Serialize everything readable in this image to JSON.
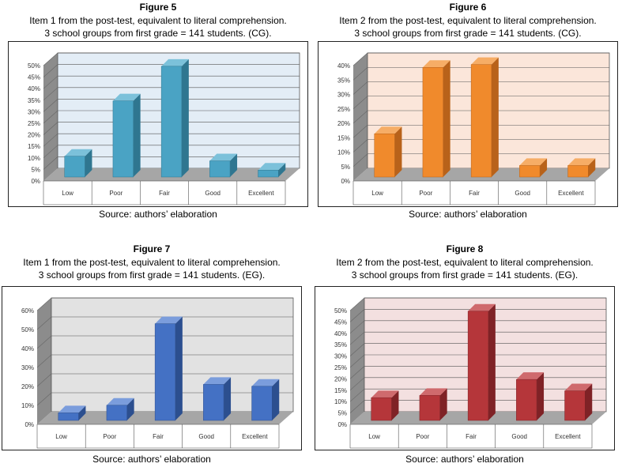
{
  "figures": [
    {
      "title": "Figure 5",
      "line1": "Item 1 from the post-test, equivalent to literal comprehension.",
      "line2": "3 school groups from first grade = 141 students. (CG).",
      "source": "Source: authors’ elaboration",
      "colors": {
        "front": "#4aa3c4",
        "side": "#2f7690",
        "top": "#7cc1da",
        "wall": "#e3edf6",
        "floor": "#a6a6a6",
        "leftwall": "#8c8c8c"
      },
      "chart_data": {
        "type": "bar",
        "categories": [
          "Low",
          "Poor",
          "Fair",
          "Good",
          "Excellent"
        ],
        "values": [
          9,
          33,
          48,
          7,
          3
        ],
        "ylim": [
          0,
          50
        ],
        "yticks": [
          "0%",
          "5%",
          "10%",
          "15%",
          "20%",
          "25%",
          "30%",
          "35%",
          "40%",
          "45%",
          "50%"
        ],
        "grid": true
      }
    },
    {
      "title": "Figure 6",
      "line1": "Item 2 from the post-test, equivalent to literal comprehension.",
      "line2": "3 school groups from first grade = 141 students. (CG).",
      "source": "Source: authors’ elaboration",
      "colors": {
        "front": "#f08a2c",
        "side": "#b8621a",
        "top": "#f6ad66",
        "wall": "#fbe6da",
        "floor": "#a6a6a6",
        "leftwall": "#8c8c8c"
      },
      "chart_data": {
        "type": "bar",
        "categories": [
          "Low",
          "Poor",
          "Fair",
          "Good",
          "Excellent"
        ],
        "values": [
          15,
          38,
          39,
          4,
          4
        ],
        "ylim": [
          0,
          40
        ],
        "yticks": [
          "0%",
          "5%",
          "10%",
          "15%",
          "20%",
          "25%",
          "30%",
          "35%",
          "40%"
        ],
        "grid": true
      }
    },
    {
      "title": "Figure 7",
      "line1": "Item 1 from the post-test, equivalent to literal comprehension.",
      "line2": "3 school groups from first grade = 141 students. (EG).",
      "source": "Source: authors’ elaboration",
      "colors": {
        "front": "#4471c4",
        "side": "#2c4f8f",
        "top": "#7b9ddc",
        "wall": "#e2e2e2",
        "floor": "#a6a6a6",
        "leftwall": "#8c8c8c"
      },
      "chart_data": {
        "type": "bar",
        "categories": [
          "Low",
          "Poor",
          "Fair",
          "Good",
          "Excellent"
        ],
        "values": [
          4,
          8,
          51,
          19,
          18
        ],
        "ylim": [
          0,
          60
        ],
        "yticks": [
          "0%",
          "10%",
          "20%",
          "30%",
          "40%",
          "50%",
          "60%"
        ],
        "grid": true
      }
    },
    {
      "title": "Figure 8",
      "line1": "Item 2 from the post-test, equivalent to literal comprehension.",
      "line2": "3 school groups from first grade = 141 students. (EG).",
      "source": "Source: authors’ elaboration",
      "colors": {
        "front": "#b5363a",
        "side": "#7f2226",
        "top": "#cf6a6d",
        "wall": "#f3e0e0",
        "floor": "#a6a6a6",
        "leftwall": "#8c8c8c"
      },
      "chart_data": {
        "type": "bar",
        "categories": [
          "Low",
          "Poor",
          "Fair",
          "Good",
          "Excellent"
        ],
        "values": [
          10,
          11,
          48,
          18,
          13
        ],
        "ylim": [
          0,
          50
        ],
        "yticks": [
          "0%",
          "5%",
          "10%",
          "15%",
          "20%",
          "25%",
          "30%",
          "35%",
          "40%",
          "45%",
          "50%"
        ],
        "grid": true
      }
    }
  ]
}
